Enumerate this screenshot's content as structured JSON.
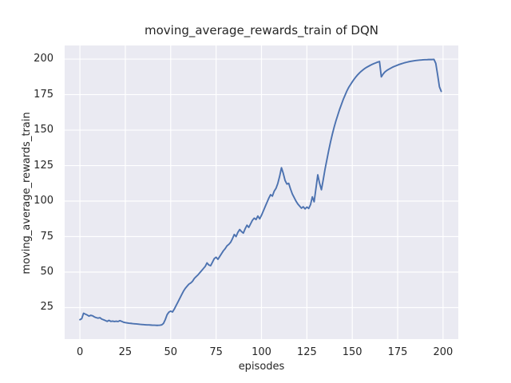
{
  "chart_data": {
    "type": "line",
    "title": "moving_average_rewards_train of DQN",
    "xlabel": "episodes",
    "ylabel": "moving_average_rewards_train",
    "x_ticks": [
      0,
      25,
      50,
      75,
      100,
      125,
      150,
      175,
      200
    ],
    "y_ticks": [
      25,
      50,
      75,
      100,
      125,
      150,
      175,
      200
    ],
    "xlim": [
      -8.4,
      208.4
    ],
    "ylim": [
      2.8,
      209.6
    ],
    "grid": true,
    "legend": "none",
    "colors": {
      "line": "#4c72b0",
      "axes_bg": "#eaeaf2",
      "grid": "#ffffff",
      "figure_bg": "#ffffff",
      "text": "#262626"
    },
    "x": {
      "start": 0,
      "step": 1
    },
    "series_name": "moving_average_rewards_train",
    "values": [
      16.5,
      17.2,
      21.0,
      20.4,
      19.8,
      19.0,
      19.6,
      19.2,
      18.4,
      17.9,
      17.6,
      17.9,
      16.9,
      16.4,
      15.9,
      15.3,
      16.0,
      15.3,
      15.5,
      15.2,
      15.4,
      15.2,
      15.8,
      15.3,
      14.7,
      14.4,
      14.2,
      14.0,
      13.9,
      13.7,
      13.6,
      13.5,
      13.4,
      13.2,
      13.1,
      13.0,
      12.9,
      12.8,
      12.8,
      12.7,
      12.6,
      12.6,
      12.5,
      12.5,
      12.6,
      12.8,
      13.8,
      16.5,
      20.0,
      21.8,
      22.5,
      21.9,
      24.0,
      26.5,
      29.0,
      31.5,
      34.0,
      36.5,
      38.5,
      40.0,
      41.5,
      42.3,
      43.5,
      45.5,
      46.8,
      48.0,
      49.5,
      51.0,
      52.5,
      54.0,
      56.5,
      55.0,
      54.5,
      57.0,
      59.5,
      60.5,
      59.0,
      61.0,
      63.0,
      65.0,
      66.5,
      68.5,
      69.5,
      71.0,
      73.5,
      76.5,
      75.0,
      78.0,
      80.0,
      78.5,
      77.5,
      80.5,
      83.0,
      81.5,
      84.0,
      86.5,
      88.0,
      87.0,
      89.5,
      87.5,
      90.0,
      93.0,
      96.0,
      99.0,
      102.0,
      104.5,
      103.5,
      107.0,
      109.0,
      112.5,
      117.5,
      123.5,
      119.5,
      114.5,
      112.0,
      112.5,
      108.5,
      105.0,
      102.5,
      100.0,
      98.0,
      96.5,
      95.0,
      96.0,
      94.5,
      95.8,
      94.8,
      97.5,
      103.0,
      99.5,
      109.0,
      118.5,
      112.5,
      108.0,
      115.0,
      122.5,
      129.0,
      135.5,
      141.5,
      147.0,
      152.0,
      156.5,
      160.5,
      164.5,
      168.0,
      171.5,
      174.5,
      177.5,
      180.0,
      182.0,
      184.0,
      185.8,
      187.5,
      189.0,
      190.3,
      191.5,
      192.5,
      193.5,
      194.3,
      195.0,
      195.7,
      196.3,
      196.9,
      197.4,
      197.9,
      198.3,
      187.5,
      189.5,
      191.0,
      192.0,
      192.8,
      193.5,
      194.2,
      194.8,
      195.3,
      195.8,
      196.3,
      196.7,
      197.1,
      197.5,
      197.8,
      198.1,
      198.4,
      198.6,
      198.8,
      199.0,
      199.2,
      199.3,
      199.4,
      199.5,
      199.6,
      199.6,
      199.7,
      199.7,
      199.7,
      199.8,
      197.0,
      189.0,
      180.5,
      177.3
    ]
  }
}
